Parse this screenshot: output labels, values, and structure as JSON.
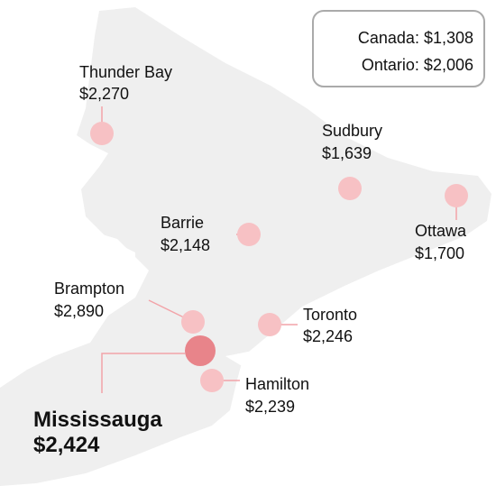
{
  "legend": {
    "lines": [
      "Canada: $1,308",
      "Ontario: $2,006"
    ]
  },
  "cities": [
    {
      "name": "Thunder Bay",
      "value": "$2,270"
    },
    {
      "name": "Sudbury",
      "value": "$1,639"
    },
    {
      "name": "Ottawa",
      "value": "$1,700"
    },
    {
      "name": "Barrie",
      "value": "$2,148"
    },
    {
      "name": "Brampton",
      "value": "$2,890"
    },
    {
      "name": "Toronto",
      "value": "$2,246"
    },
    {
      "name": "Mississauga",
      "value": "$2,424"
    },
    {
      "name": "Hamilton",
      "value": "$2,239"
    }
  ]
}
